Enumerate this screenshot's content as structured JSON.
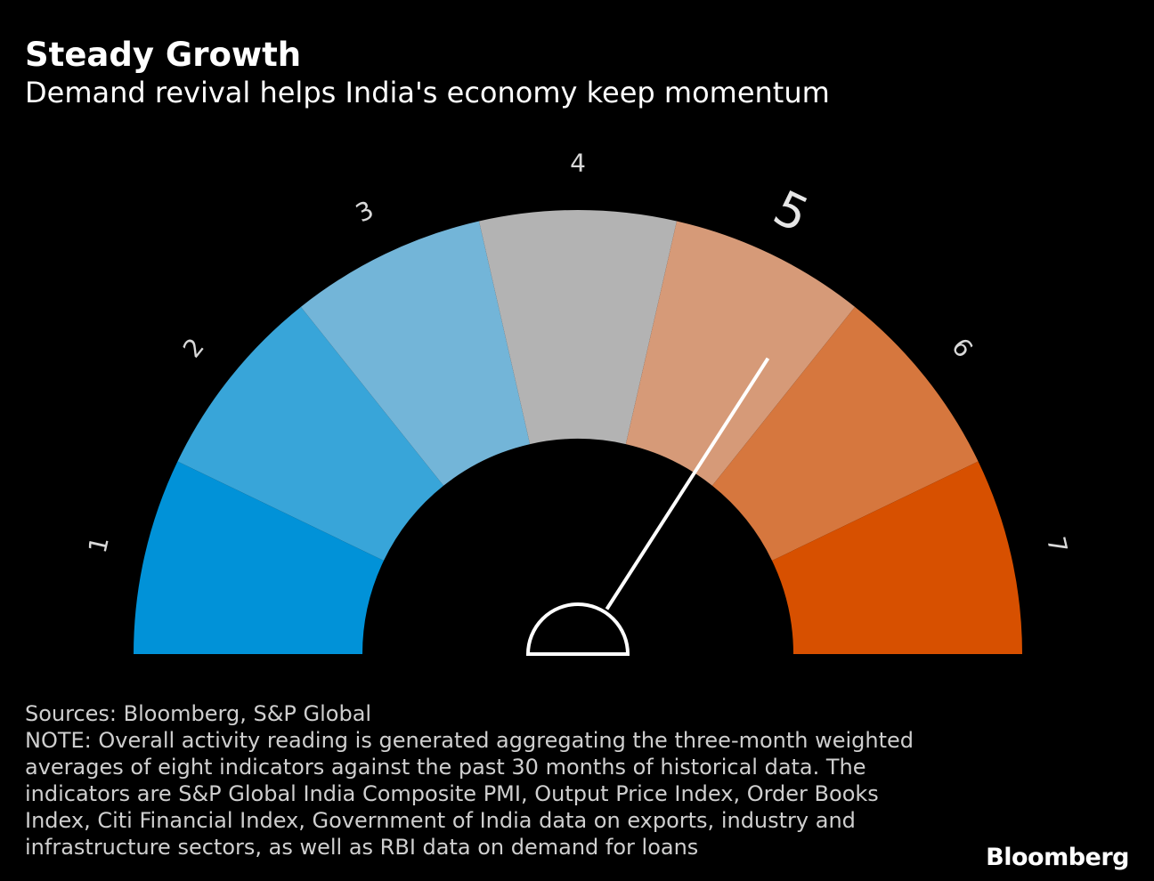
{
  "header": {
    "title": "Steady Growth",
    "subtitle": "Demand revival helps India's economy keep momentum"
  },
  "chart_data": {
    "type": "gauge",
    "title": "Steady Growth",
    "subtitle": "Demand revival helps India's economy keep momentum",
    "scale_min": 1,
    "scale_max": 7,
    "segments": [
      {
        "label": "1",
        "color": "#0192d8"
      },
      {
        "label": "2",
        "color": "#38a5d9"
      },
      {
        "label": "3",
        "color": "#73b5d8"
      },
      {
        "label": "4",
        "color": "#b3b3b3"
      },
      {
        "label": "5",
        "color": "#d69a78"
      },
      {
        "label": "6",
        "color": "#d6773e"
      },
      {
        "label": "7",
        "color": "#d75000"
      }
    ],
    "current_value": 5,
    "highlighted_label": "5",
    "needle_color": "#ffffff"
  },
  "footer": {
    "sources": "Sources: Bloomberg, S&P Global",
    "note_lines": [
      "NOTE: Overall activity reading is generated aggregating the three-month weighted",
      "averages of eight indicators against the past 30 months of historical data. The",
      "indicators are S&P Global India Composite PMI, Output Price Index, Order Books",
      "Index, Citi Financial Index, Government of India data on exports, industry and",
      "infrastructure sectors, as well as RBI data on demand for loans"
    ]
  },
  "branding": {
    "logo_text": "Bloomberg"
  }
}
